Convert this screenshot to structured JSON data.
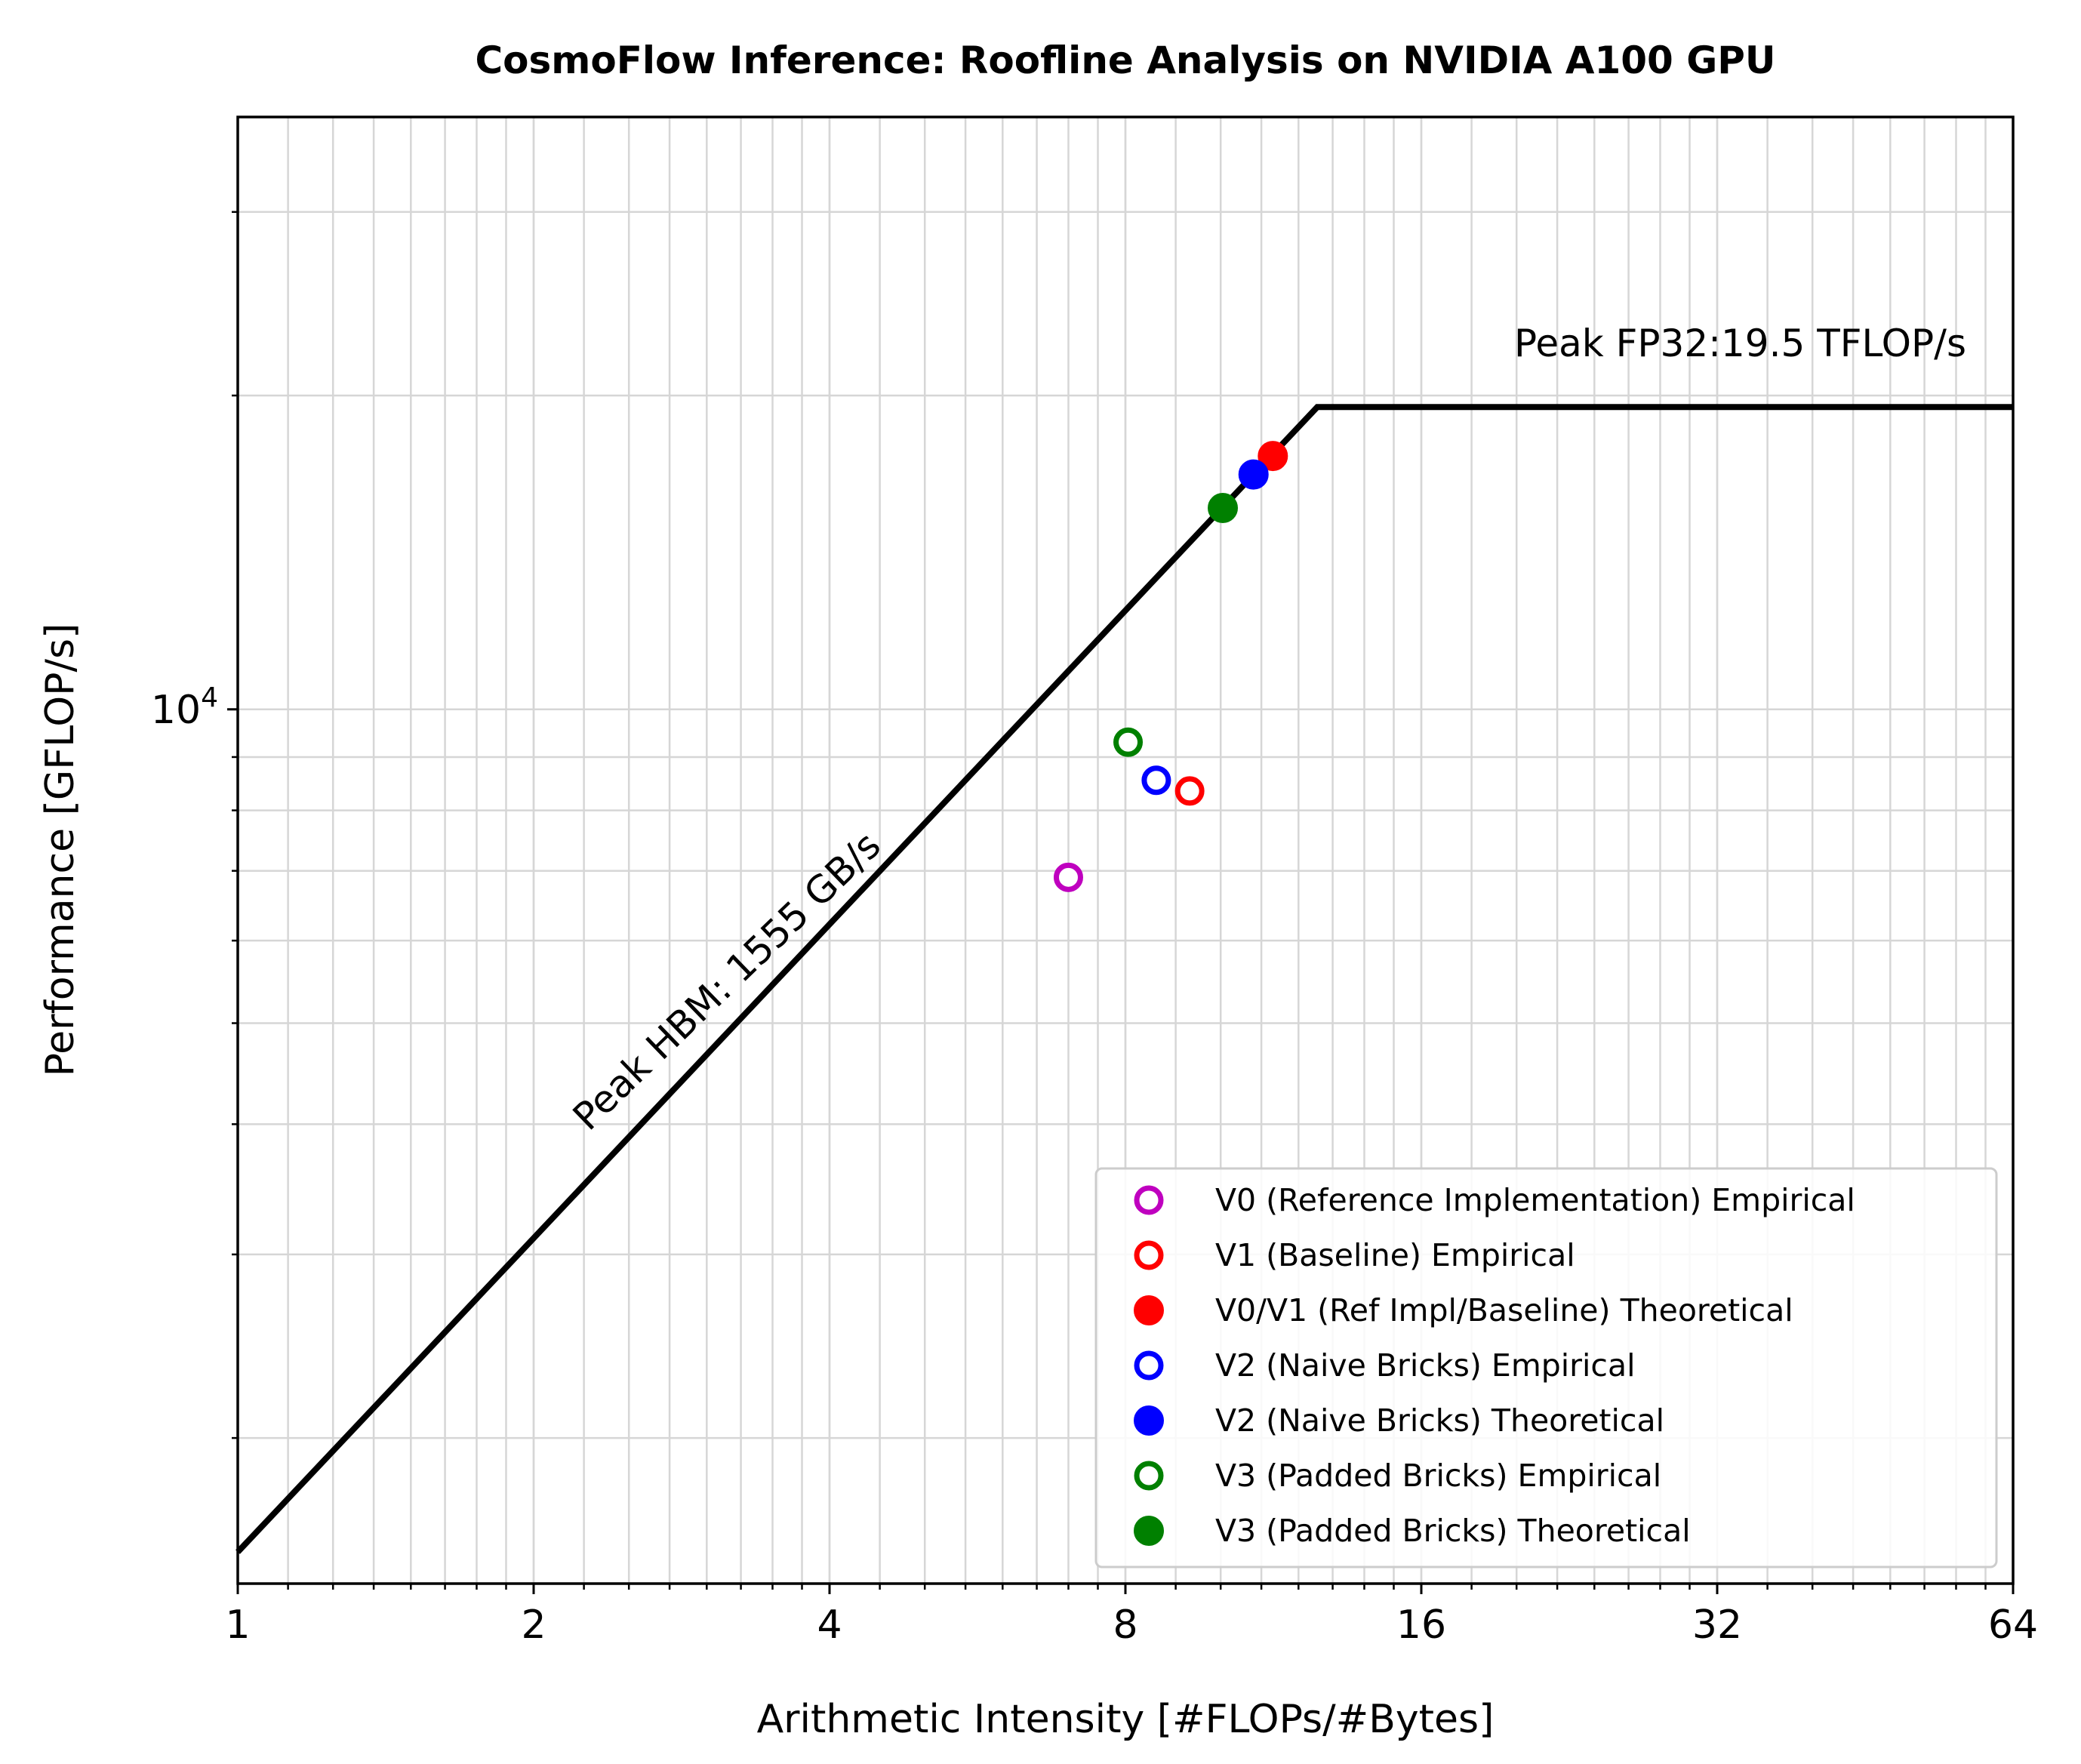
{
  "chart_data": {
    "type": "scatter",
    "title": "CosmoFlow Inference: Roofline Analysis on NVIDIA A100 GPU",
    "xlabel": "Arithmetic Intensity [#FLOPs/#Bytes]",
    "ylabel": "Performance [GFLOP/s]",
    "xscale": "log2",
    "yscale": "log10",
    "xlim": [
      1,
      64
    ],
    "ylim": [
      1450,
      37000
    ],
    "x_ticks": [
      {
        "value": 1,
        "label": "1"
      },
      {
        "value": 2,
        "label": "2"
      },
      {
        "value": 4,
        "label": "4"
      },
      {
        "value": 8,
        "label": "8"
      },
      {
        "value": 16,
        "label": "16"
      },
      {
        "value": 32,
        "label": "32"
      },
      {
        "value": 64,
        "label": "64"
      }
    ],
    "y_ticks": [
      {
        "value": 10000,
        "base": "10",
        "exp": "4"
      }
    ],
    "grid": true,
    "legend_position": "lower right",
    "roofline": {
      "bandwidth_gbs": 1555,
      "peak_gflops": 19500,
      "bandwidth_label": "Peak HBM: 1555 GB/s",
      "peak_label": "Peak FP32:19.5 TFLOP/s"
    },
    "series": [
      {
        "name": "V0 (Reference Implementation) Empirical",
        "x": 7.0,
        "y": 6900,
        "color": "#bf00bf",
        "filled": false
      },
      {
        "name": "V1 (Baseline) Empirical",
        "x": 9.3,
        "y": 8350,
        "color": "#ff0000",
        "filled": false
      },
      {
        "name": "V0/V1 (Ref Impl/Baseline) Theoretical",
        "x": 11.3,
        "y": 17500,
        "color": "#ff0000",
        "filled": true
      },
      {
        "name": "V2 (Naive Bricks) Empirical",
        "x": 8.6,
        "y": 8550,
        "color": "#0000ff",
        "filled": false
      },
      {
        "name": "V2 (Naive Bricks) Theoretical",
        "x": 10.8,
        "y": 16800,
        "color": "#0000ff",
        "filled": true
      },
      {
        "name": "V3 (Padded Bricks) Empirical",
        "x": 8.05,
        "y": 9300,
        "color": "#008000",
        "filled": false
      },
      {
        "name": "V3 (Padded Bricks) Theoretical",
        "x": 10.05,
        "y": 15600,
        "color": "#008000",
        "filled": true
      }
    ]
  }
}
